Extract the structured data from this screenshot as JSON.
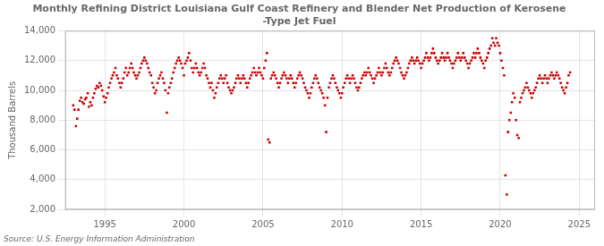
{
  "chart_data": {
    "type": "scatter",
    "title": "Monthly Refining District Louisiana Gulf Coast Refinery and Blender Net Production of Kerosene\n-Type Jet Fuel",
    "y_label": "Thousand Barrels",
    "annotations": [
      "Source: U.S. Energy Information Administration"
    ],
    "color": "#cc0000",
    "marker": "square",
    "grid": true,
    "xlim": [
      1992.5,
      2026.0
    ],
    "xticks": [
      1995,
      2000,
      2005,
      2010,
      2015,
      2020,
      2025
    ],
    "ylim": [
      2000,
      14000
    ],
    "yticks": [
      {
        "value": 2000,
        "label": "2,000"
      },
      {
        "value": 4000,
        "label": "4,000"
      },
      {
        "value": 6000,
        "label": "6,000"
      },
      {
        "value": 8000,
        "label": "8,000"
      },
      {
        "value": 10000,
        "label": "10,000"
      },
      {
        "value": 12000,
        "label": "12,000"
      },
      {
        "value": 14000,
        "label": "14,000"
      }
    ],
    "x": [
      1993.0,
      1993.08,
      1993.17,
      1993.25,
      1993.33,
      1993.42,
      1993.5,
      1993.58,
      1993.67,
      1993.75,
      1993.83,
      1993.92,
      1994.0,
      1994.08,
      1994.17,
      1994.25,
      1994.33,
      1994.42,
      1994.5,
      1994.58,
      1994.67,
      1994.75,
      1994.83,
      1994.92,
      1995.0,
      1995.08,
      1995.17,
      1995.25,
      1995.33,
      1995.42,
      1995.5,
      1995.58,
      1995.67,
      1995.75,
      1995.83,
      1995.92,
      1996.0,
      1996.08,
      1996.17,
      1996.25,
      1996.33,
      1996.42,
      1996.5,
      1996.58,
      1996.67,
      1996.75,
      1996.83,
      1996.92,
      1997.0,
      1997.08,
      1997.17,
      1997.25,
      1997.33,
      1997.42,
      1997.5,
      1997.58,
      1997.67,
      1997.75,
      1997.83,
      1997.92,
      1998.0,
      1998.08,
      1998.17,
      1998.25,
      1998.33,
      1998.42,
      1998.5,
      1998.58,
      1998.67,
      1998.75,
      1998.83,
      1998.92,
      1999.0,
      1999.08,
      1999.17,
      1999.25,
      1999.33,
      1999.42,
      1999.5,
      1999.58,
      1999.67,
      1999.75,
      1999.83,
      1999.92,
      2000.0,
      2000.08,
      2000.17,
      2000.25,
      2000.33,
      2000.42,
      2000.5,
      2000.58,
      2000.67,
      2000.75,
      2000.83,
      2000.92,
      2001.0,
      2001.08,
      2001.17,
      2001.25,
      2001.33,
      2001.42,
      2001.5,
      2001.58,
      2001.67,
      2001.75,
      2001.83,
      2001.92,
      2002.0,
      2002.08,
      2002.17,
      2002.25,
      2002.33,
      2002.42,
      2002.5,
      2002.58,
      2002.67,
      2002.75,
      2002.83,
      2002.92,
      2003.0,
      2003.08,
      2003.17,
      2003.25,
      2003.33,
      2003.42,
      2003.5,
      2003.58,
      2003.67,
      2003.75,
      2003.83,
      2003.92,
      2004.0,
      2004.08,
      2004.17,
      2004.25,
      2004.33,
      2004.42,
      2004.5,
      2004.58,
      2004.67,
      2004.75,
      2004.83,
      2004.92,
      2005.0,
      2005.08,
      2005.17,
      2005.25,
      2005.33,
      2005.42,
      2005.5,
      2005.58,
      2005.67,
      2005.75,
      2005.83,
      2005.92,
      2006.0,
      2006.08,
      2006.17,
      2006.25,
      2006.33,
      2006.42,
      2006.5,
      2006.58,
      2006.67,
      2006.75,
      2006.83,
      2006.92,
      2007.0,
      2007.08,
      2007.17,
      2007.25,
      2007.33,
      2007.42,
      2007.5,
      2007.58,
      2007.67,
      2007.75,
      2007.83,
      2007.92,
      2008.0,
      2008.08,
      2008.17,
      2008.25,
      2008.33,
      2008.42,
      2008.5,
      2008.58,
      2008.67,
      2008.75,
      2008.83,
      2008.92,
      2009.0,
      2009.08,
      2009.17,
      2009.25,
      2009.33,
      2009.42,
      2009.5,
      2009.58,
      2009.67,
      2009.75,
      2009.83,
      2009.92,
      2010.0,
      2010.08,
      2010.17,
      2010.25,
      2010.33,
      2010.42,
      2010.5,
      2010.58,
      2010.67,
      2010.75,
      2010.83,
      2010.92,
      2011.0,
      2011.08,
      2011.17,
      2011.25,
      2011.33,
      2011.42,
      2011.5,
      2011.58,
      2011.67,
      2011.75,
      2011.83,
      2011.92,
      2012.0,
      2012.08,
      2012.17,
      2012.25,
      2012.33,
      2012.42,
      2012.5,
      2012.58,
      2012.67,
      2012.75,
      2012.83,
      2012.92,
      2013.0,
      2013.08,
      2013.17,
      2013.25,
      2013.33,
      2013.42,
      2013.5,
      2013.58,
      2013.67,
      2013.75,
      2013.83,
      2013.92,
      2014.0,
      2014.08,
      2014.17,
      2014.25,
      2014.33,
      2014.42,
      2014.5,
      2014.58,
      2014.67,
      2014.75,
      2014.83,
      2014.92,
      2015.0,
      2015.08,
      2015.17,
      2015.25,
      2015.33,
      2015.42,
      2015.5,
      2015.58,
      2015.67,
      2015.75,
      2015.83,
      2015.92,
      2016.0,
      2016.08,
      2016.17,
      2016.25,
      2016.33,
      2016.42,
      2016.5,
      2016.58,
      2016.67,
      2016.75,
      2016.83,
      2016.92,
      2017.0,
      2017.08,
      2017.17,
      2017.25,
      2017.33,
      2017.42,
      2017.5,
      2017.58,
      2017.67,
      2017.75,
      2017.83,
      2017.92,
      2018.0,
      2018.08,
      2018.17,
      2018.25,
      2018.33,
      2018.42,
      2018.5,
      2018.58,
      2018.67,
      2018.75,
      2018.83,
      2018.92,
      2019.0,
      2019.08,
      2019.17,
      2019.25,
      2019.33,
      2019.42,
      2019.5,
      2019.58,
      2019.67,
      2019.75,
      2019.83,
      2019.92,
      2020.0,
      2020.08,
      2020.17,
      2020.25,
      2020.33,
      2020.42,
      2020.5,
      2020.58,
      2020.67,
      2020.75,
      2020.83,
      2020.92,
      2021.0,
      2021.08,
      2021.17,
      2021.25,
      2021.33,
      2021.42,
      2021.5,
      2021.58,
      2021.67,
      2021.75,
      2021.83,
      2021.92,
      2022.0,
      2022.08,
      2022.17,
      2022.25,
      2022.33,
      2022.42,
      2022.5,
      2022.58,
      2022.67,
      2022.75,
      2022.83,
      2022.92,
      2023.0,
      2023.08,
      2023.17,
      2023.25,
      2023.33,
      2023.42,
      2023.5,
      2023.58,
      2023.67,
      2023.75,
      2023.83,
      2023.92,
      2024.0,
      2024.08,
      2024.17,
      2024.25,
      2024.33,
      2024.42
    ],
    "values": [
      9000,
      8700,
      7600,
      8100,
      8700,
      9300,
      9500,
      9200,
      9100,
      9400,
      9500,
      9800,
      8900,
      9200,
      9000,
      9500,
      9800,
      10100,
      10300,
      10200,
      10500,
      10300,
      10000,
      9600,
      9200,
      9500,
      9800,
      10200,
      10500,
      10800,
      11000,
      11200,
      11500,
      11000,
      10800,
      10500,
      10200,
      10500,
      10800,
      11200,
      11500,
      11000,
      11200,
      11500,
      11800,
      11500,
      11200,
      11000,
      10800,
      11000,
      11200,
      11500,
      11800,
      12000,
      12200,
      12000,
      11800,
      11500,
      11200,
      11000,
      10500,
      10200,
      9800,
      10000,
      10500,
      10800,
      11000,
      11200,
      10800,
      10500,
      10000,
      8500,
      9800,
      10200,
      10500,
      10800,
      11200,
      11500,
      11800,
      12000,
      12200,
      12000,
      11800,
      11500,
      11000,
      11800,
      12000,
      12200,
      12500,
      12000,
      11500,
      11200,
      11500,
      11800,
      11500,
      11200,
      11000,
      11200,
      11500,
      11800,
      11500,
      11000,
      10800,
      10500,
      10200,
      10500,
      10000,
      9500,
      9800,
      10200,
      10500,
      10800,
      11000,
      10800,
      10500,
      10800,
      11000,
      10500,
      10200,
      10000,
      9800,
      10000,
      10200,
      10500,
      10800,
      11000,
      10800,
      10500,
      10800,
      11000,
      10800,
      10500,
      10200,
      10500,
      10800,
      11000,
      11200,
      11500,
      11200,
      11000,
      11200,
      11500,
      11200,
      11000,
      10800,
      11500,
      12000,
      12500,
      6700,
      6500,
      10800,
      11000,
      11200,
      11000,
      10800,
      10500,
      10200,
      10500,
      10800,
      11000,
      11200,
      11000,
      10800,
      10500,
      10800,
      11000,
      10800,
      10500,
      10200,
      10500,
      10800,
      11000,
      11200,
      11000,
      10800,
      10500,
      10200,
      10000,
      9800,
      9500,
      9800,
      10200,
      10500,
      10800,
      11000,
      10800,
      10500,
      10200,
      10000,
      9800,
      9500,
      9000,
      7200,
      9500,
      10200,
      10500,
      10800,
      11000,
      10800,
      10500,
      10200,
      10000,
      9800,
      9500,
      9800,
      10200,
      10500,
      10800,
      11000,
      10800,
      10500,
      10800,
      11000,
      10800,
      10500,
      10200,
      10000,
      10200,
      10500,
      10800,
      11000,
      11200,
      11000,
      11200,
      11500,
      11200,
      11000,
      10800,
      10500,
      10800,
      11000,
      11200,
      11500,
      11200,
      11000,
      11200,
      11500,
      11800,
      11500,
      11200,
      11000,
      11200,
      11500,
      11800,
      12000,
      12200,
      12000,
      11800,
      11500,
      11200,
      11000,
      10800,
      11000,
      11200,
      11500,
      11800,
      12000,
      12200,
      12000,
      11800,
      12000,
      12200,
      12000,
      11800,
      11500,
      11800,
      12000,
      12200,
      12500,
      12200,
      12000,
      12200,
      12500,
      12800,
      12500,
      12200,
      12000,
      11800,
      12000,
      12200,
      12500,
      12200,
      12000,
      12200,
      12500,
      12200,
      12000,
      11800,
      11500,
      11800,
      12000,
      12200,
      12500,
      12200,
      12000,
      12200,
      12500,
      12200,
      12000,
      11800,
      11500,
      11800,
      12000,
      12200,
      12500,
      12200,
      12500,
      12800,
      12500,
      12200,
      12000,
      11800,
      11500,
      12000,
      12200,
      12500,
      12800,
      13000,
      13500,
      13200,
      13000,
      13500,
      13200,
      13000,
      12500,
      12000,
      11500,
      11000,
      4300,
      3000,
      7200,
      8000,
      8500,
      9200,
      9800,
      9500,
      8000,
      7000,
      6800,
      9200,
      9500,
      9800,
      10000,
      10200,
      10500,
      10200,
      10000,
      9800,
      9500,
      9800,
      10000,
      10200,
      10500,
      10800,
      11000,
      10800,
      10500,
      10800,
      11000,
      10800,
      10500,
      10800,
      11000,
      11200,
      11000,
      10800,
      11000,
      11200,
      11000,
      10800,
      10500,
      10200,
      10000,
      9800,
      10200,
      10500,
      11000,
      11200
    ]
  }
}
